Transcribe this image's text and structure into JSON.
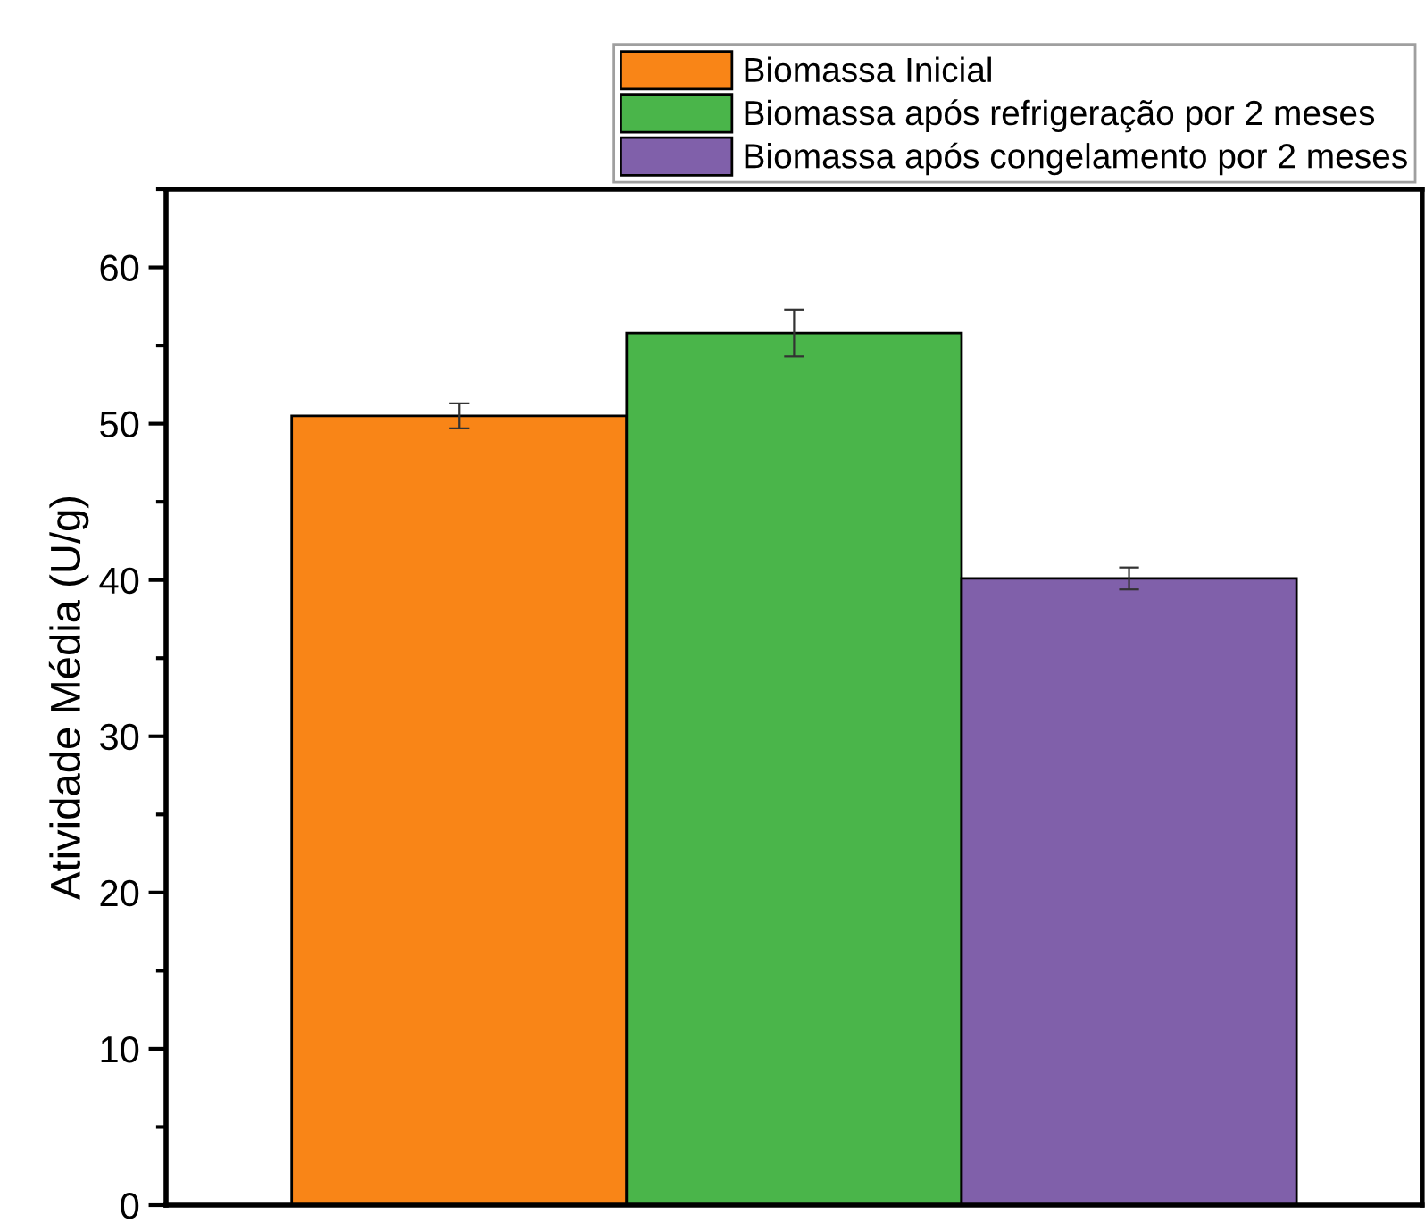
{
  "chart_data": {
    "type": "bar",
    "ylabel": "Atividade Média (U/g)",
    "categories": [
      null
    ],
    "series": [
      {
        "name": "Biomassa Inicial",
        "color": "#f98517",
        "values": [
          50.5
        ],
        "errors": [
          0.8
        ]
      },
      {
        "name": "Biomassa após refrigeração por 2 meses",
        "color": "#4ab54a",
        "values": [
          55.8
        ],
        "errors": [
          1.5
        ]
      },
      {
        "name": "Biomassa após congelamento por 2 meses",
        "color": "#8060aa",
        "values": [
          40.1
        ],
        "errors": [
          0.7
        ]
      }
    ],
    "ylim": [
      0,
      65
    ],
    "yticks": [
      0,
      10,
      20,
      30,
      40,
      50,
      60
    ],
    "grid": false,
    "legend": "top right"
  }
}
